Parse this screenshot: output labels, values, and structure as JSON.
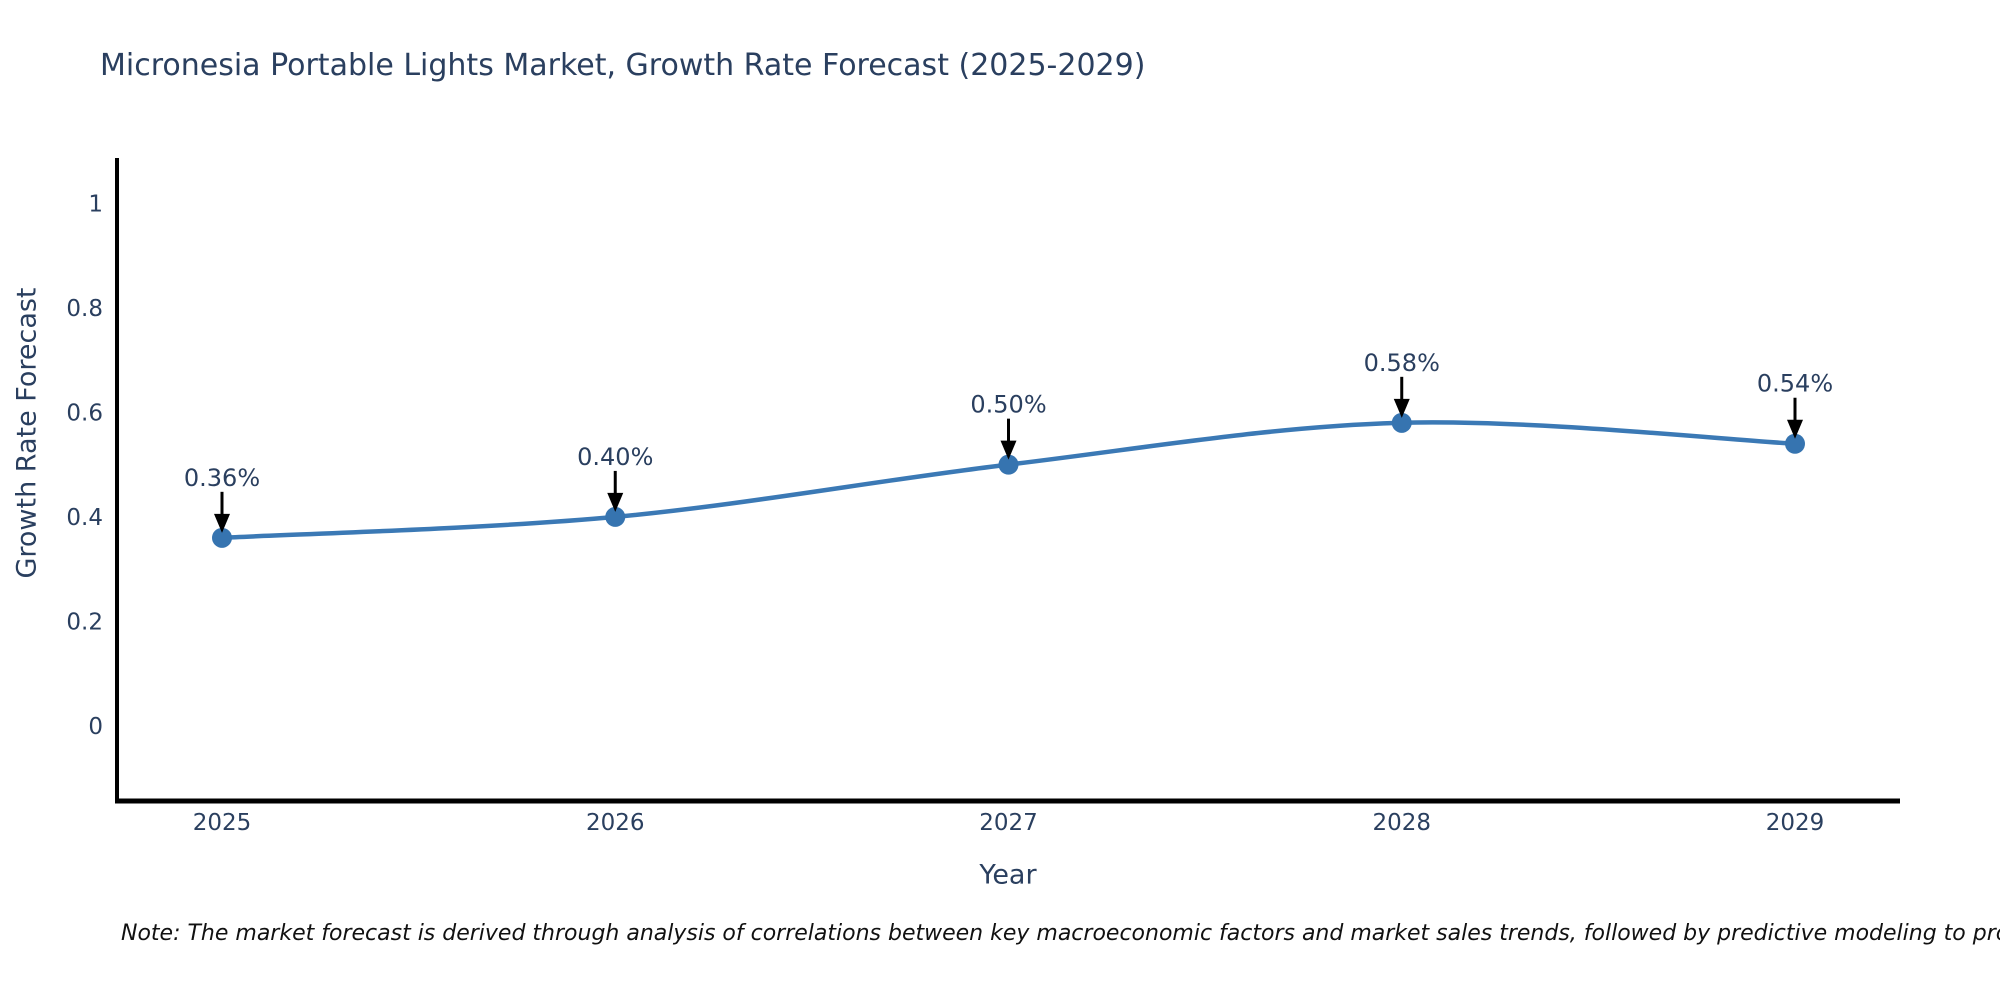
{
  "title": "Micronesia Portable Lights Market, Growth Rate Forecast (2025-2029)",
  "note": "Note: The market forecast is derived through analysis of correlations between key macroeconomic factors and market sales trends, followed by predictive modeling to project future sales",
  "chart_data": {
    "type": "line",
    "title": "Micronesia Portable Lights Market, Growth Rate Forecast (2025-2029)",
    "xlabel": "Year",
    "ylabel": "Growth Rate Forecast",
    "categories": [
      "2025",
      "2026",
      "2027",
      "2028",
      "2029"
    ],
    "series": [
      {
        "name": "Growth Rate Forecast",
        "values": [
          0.36,
          0.4,
          0.5,
          0.58,
          0.54
        ],
        "point_labels": [
          "0.36%",
          "0.40%",
          "0.50%",
          "0.58%",
          "0.54%"
        ]
      }
    ],
    "yticks": [
      0,
      0.2,
      0.4,
      0.6,
      0.8,
      1
    ],
    "ytick_labels": [
      "0",
      "0.2",
      "0.4",
      "0.6",
      "0.8",
      "1"
    ],
    "ylim": [
      -0.15,
      1.08
    ],
    "grid": false,
    "legend_position": "none",
    "line_style": "spline",
    "colors": {
      "line": "#3b79b5",
      "marker": "#3674b0",
      "axis": "#000000",
      "arrow": "#000000",
      "tick_text": "#2a3f5f",
      "annotation_text": "#2a3f5f",
      "background": "#ffffff"
    }
  }
}
